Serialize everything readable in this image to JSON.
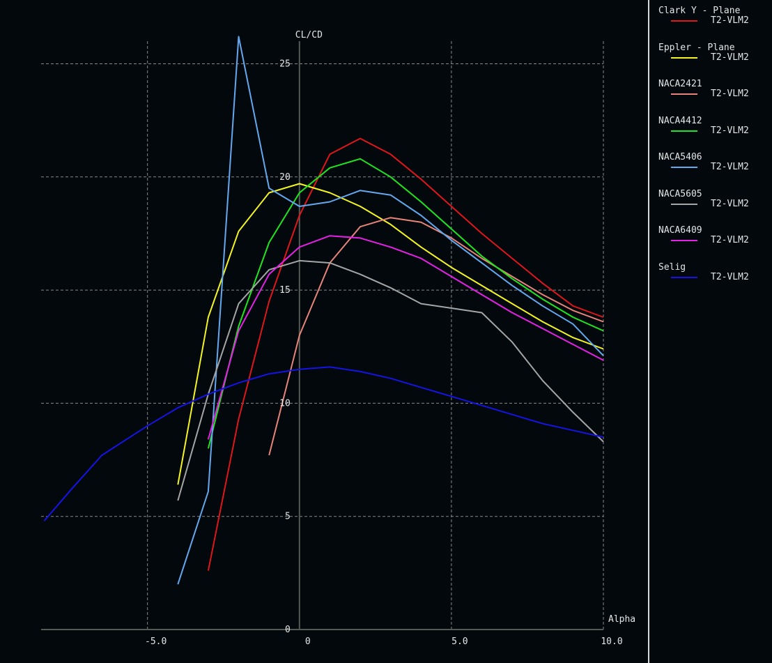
{
  "chart_data": {
    "type": "line",
    "xlabel": "Alpha",
    "ylabel": "CL/CD",
    "xlim": [
      -8.5,
      10.0
    ],
    "ylim": [
      0,
      26
    ],
    "x_ticks": [
      -5.0,
      0,
      5.0,
      10.0
    ],
    "x_tick_labels": [
      "-5.0",
      "0",
      "5.0",
      "10.0"
    ],
    "y_ticks": [
      0,
      5,
      10,
      15,
      20,
      25
    ],
    "y_tick_labels": [
      "0",
      "5",
      "10",
      "15",
      "20",
      "25"
    ],
    "grid": true,
    "legend_position": "right",
    "series": [
      {
        "name": "Clark Y - Plane",
        "curve": "T2-VLM2",
        "color": "#e0161b",
        "x": [
          -3,
          -2,
          -1,
          0,
          1,
          2,
          3,
          4,
          5,
          6,
          7,
          8,
          9,
          10
        ],
        "y": [
          2.6,
          9.3,
          14.5,
          18.3,
          21.0,
          21.7,
          21.0,
          19.9,
          18.7,
          17.5,
          16.4,
          15.3,
          14.3,
          13.8
        ]
      },
      {
        "name": "Eppler - Plane",
        "curve": "T2-VLM2",
        "color": "#f5f520",
        "x": [
          -4,
          -3,
          -2,
          -1,
          0,
          1,
          2,
          3,
          4,
          5,
          6,
          7,
          8,
          9,
          10
        ],
        "y": [
          6.4,
          13.8,
          17.6,
          19.3,
          19.7,
          19.3,
          18.7,
          17.9,
          16.9,
          16.0,
          15.2,
          14.4,
          13.6,
          12.9,
          12.4
        ]
      },
      {
        "name": "NACA2421",
        "curve": "T2-VLM2",
        "color": "#e8857a",
        "x": [
          -1,
          0,
          1,
          2,
          3,
          4,
          5,
          6,
          7,
          8,
          9,
          10
        ],
        "y": [
          7.7,
          13.0,
          16.2,
          17.8,
          18.2,
          18.0,
          17.3,
          16.4,
          15.6,
          14.8,
          14.1,
          13.6
        ]
      },
      {
        "name": "NACA4412",
        "curve": "T2-VLM2",
        "color": "#1ee61e",
        "x": [
          -3,
          -2,
          -1,
          0,
          1,
          2,
          3,
          4,
          5,
          6,
          7,
          8,
          9,
          10
        ],
        "y": [
          8.0,
          13.4,
          17.1,
          19.3,
          20.4,
          20.8,
          20.0,
          18.9,
          17.7,
          16.5,
          15.5,
          14.6,
          13.8,
          13.2
        ]
      },
      {
        "name": "NACA5406",
        "curve": "T2-VLM2",
        "color": "#63a9f0",
        "x": [
          -4,
          -3,
          -2,
          -1,
          0,
          1,
          2,
          3,
          4,
          5,
          6,
          7,
          8,
          9,
          10
        ],
        "y": [
          2.0,
          6.1,
          26.2,
          19.5,
          18.7,
          18.9,
          19.4,
          19.2,
          18.3,
          17.2,
          16.2,
          15.2,
          14.3,
          13.5,
          12.1
        ]
      },
      {
        "name": "NACA5605",
        "curve": "T2-VLM2",
        "color": "#a6a6a6",
        "x": [
          -4,
          -3,
          -2,
          -1,
          0,
          1,
          2,
          3,
          4,
          5,
          6,
          7,
          8,
          9,
          10
        ],
        "y": [
          5.7,
          10.4,
          14.4,
          15.9,
          16.3,
          16.2,
          15.7,
          15.1,
          14.4,
          14.2,
          14.0,
          12.7,
          11.0,
          9.6,
          8.3
        ]
      },
      {
        "name": "NACA6409",
        "curve": "T2-VLM2",
        "color": "#e620e6",
        "x": [
          -3,
          -2,
          -1,
          0,
          1,
          2,
          3,
          4,
          5,
          6,
          7,
          8,
          9,
          10
        ],
        "y": [
          8.4,
          13.2,
          15.7,
          16.9,
          17.4,
          17.3,
          16.9,
          16.4,
          15.6,
          14.8,
          14.0,
          13.3,
          12.6,
          11.9
        ]
      },
      {
        "name": "Selig",
        "curve": "T2-VLM2",
        "color": "#1414e6",
        "x": [
          -8.4,
          -7.5,
          -6.5,
          -5.0,
          -4.0,
          -3.0,
          -2.0,
          -1.0,
          0,
          1,
          2,
          3,
          4,
          5,
          6,
          7,
          8,
          9,
          10
        ],
        "y": [
          4.8,
          6.2,
          7.7,
          9.0,
          9.8,
          10.4,
          10.9,
          11.3,
          11.5,
          11.6,
          11.4,
          11.1,
          10.7,
          10.3,
          9.9,
          9.5,
          9.1,
          8.8,
          8.5
        ]
      }
    ]
  }
}
